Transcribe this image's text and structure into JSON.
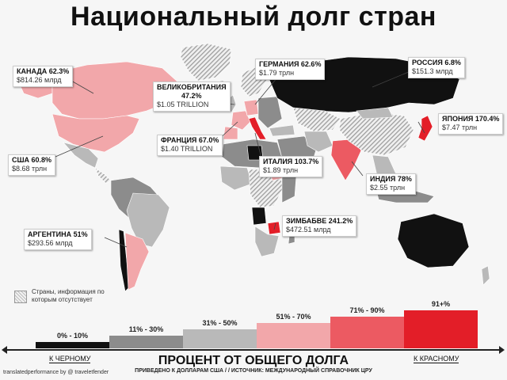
{
  "title": "Национальный долг стран",
  "countries": {
    "canada": {
      "name": "КАНАДА 62.3%",
      "value": "$814.26 млрд"
    },
    "uk": {
      "name1": "ВЕЛИКОБРИТАНИЯ",
      "name2": "47.2%",
      "value": "$1.05 TRILLION"
    },
    "germany": {
      "name": "ГЕРМАНИЯ 62.6%",
      "value": "$1.79 трлн"
    },
    "russia": {
      "name": "РОССИЯ 6.8%",
      "value": "$151.3 млрд"
    },
    "japan": {
      "name": "ЯПОНИЯ 170.4%",
      "value": "$7.47 трлн"
    },
    "france": {
      "name": "ФРАНЦИЯ 67.0%",
      "value": "$1.40 TRILLION"
    },
    "usa": {
      "name": "США 60.8%",
      "value": "$8.68 трлн"
    },
    "italy": {
      "name": "ИТАЛИЯ 103.7%",
      "value": "$1.89 трлн"
    },
    "india": {
      "name": "ИНДИЯ 78%",
      "value": "$2.55 трлн"
    },
    "zimbabwe": {
      "name": "ЗИМБАБВЕ 241.2%",
      "value": "$472.51 млрд"
    },
    "argentina": {
      "name": "АРГЕНТИНА 51%",
      "value": "$293.56 млрд"
    }
  },
  "legend": {
    "nodata": "Страны, информация по которым отсутствует",
    "bins": [
      {
        "label": "0% - 10%",
        "color": "#111111",
        "level": 1
      },
      {
        "label": "11% - 30%",
        "color": "#8c8c8c",
        "level": 2
      },
      {
        "label": "31% - 50%",
        "color": "#b9b9b9",
        "level": 3
      },
      {
        "label": "51% - 70%",
        "color": "#f2a7aa",
        "level": 4
      },
      {
        "label": "71% - 90%",
        "color": "#ec5a62",
        "level": 5
      },
      {
        "label": "91+%",
        "color": "#e31e28",
        "level": 6
      }
    ],
    "left_label": "К ЧЕРНОМУ",
    "right_label": "К КРАСНОМУ",
    "scale_title": "ПРОЦЕНТ ОТ ОБЩЕГО ДОЛГА",
    "scale_subtitle": "ПРИВЕДЕНО К ДОЛЛАРАМ США  /  /  ИСТОЧНИК: МЕЖДУНАРОДНЫЙ СПРАВОЧНИК ЦРУ"
  },
  "credit": "translatedperformance by @ traveletfender",
  "colors": {
    "black": "#111111",
    "grey_dark": "#8c8c8c",
    "grey_light": "#b9b9b9",
    "pink": "#f2a7aa",
    "red_mid": "#ec5a62",
    "red": "#e31e28",
    "land_default": "#d9d9d9"
  }
}
